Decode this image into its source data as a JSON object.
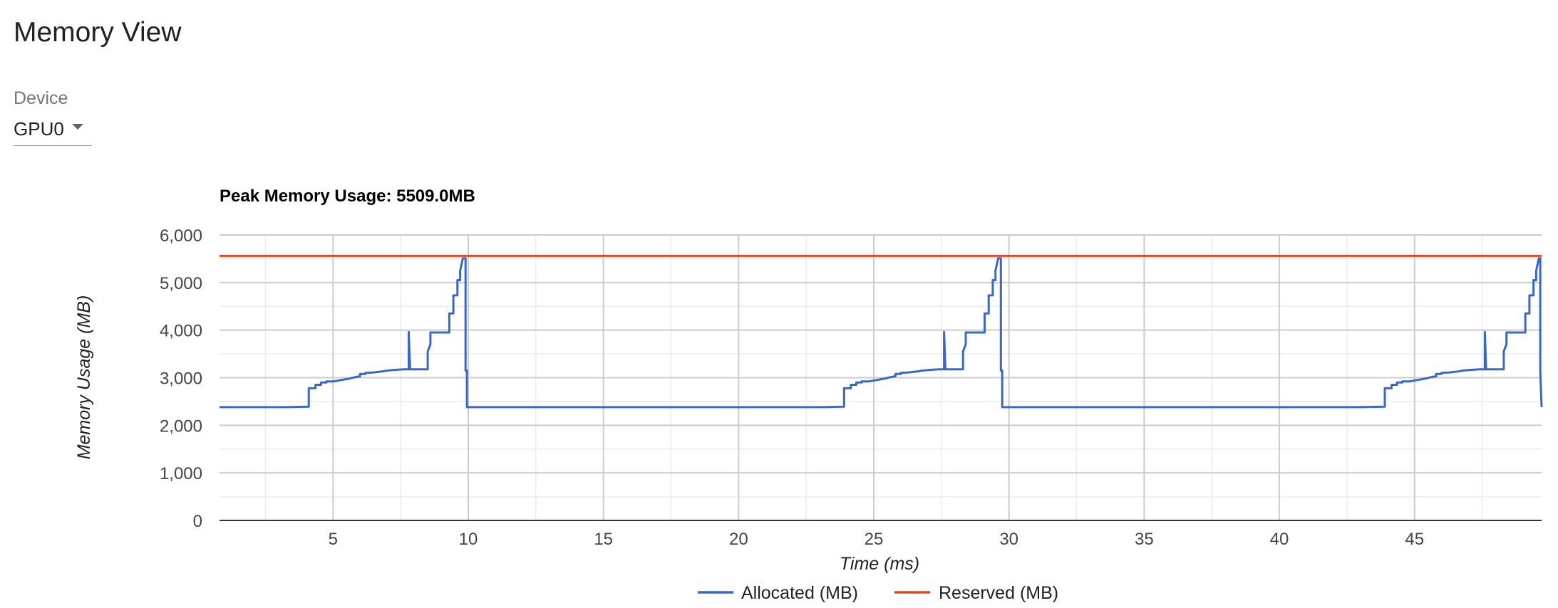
{
  "page": {
    "title": "Memory View"
  },
  "device": {
    "label": "Device",
    "selected": "GPU0"
  },
  "colors": {
    "allocated": "#3b67c4",
    "reserved": "#db4a2b"
  },
  "chart_data": {
    "type": "line",
    "title": "Peak Memory Usage: 5509.0MB",
    "xlabel": "Time (ms)",
    "ylabel": "Memory Usage (MB)",
    "xlim": [
      0.8,
      49.7
    ],
    "ylim": [
      0,
      6000
    ],
    "xticks": [
      5,
      10,
      15,
      20,
      25,
      30,
      35,
      40,
      45
    ],
    "xtick_labels": [
      "5",
      "10",
      "15",
      "20",
      "25",
      "30",
      "35",
      "40",
      "45"
    ],
    "yticks": [
      0,
      1000,
      2000,
      3000,
      4000,
      5000,
      6000
    ],
    "ytick_labels": [
      "0",
      "1,000",
      "2,000",
      "3,000",
      "4,000",
      "5,000",
      "6,000"
    ],
    "grid": true,
    "legend_position": "bottom",
    "series": [
      {
        "name": "Allocated (MB)",
        "color": "#3b67c4",
        "x": [
          0.8,
          3.3,
          4.1,
          4.1,
          4.35,
          4.35,
          4.55,
          4.55,
          4.75,
          4.75,
          5.0,
          5.2,
          5.4,
          5.6,
          5.8,
          6.0,
          6.0,
          6.2,
          6.2,
          6.5,
          6.8,
          7.0,
          7.3,
          7.6,
          7.8,
          7.8,
          7.85,
          7.85,
          8.5,
          8.5,
          8.6,
          8.6,
          9.3,
          9.3,
          9.45,
          9.45,
          9.6,
          9.6,
          9.7,
          9.7,
          9.8,
          9.9,
          9.9,
          9.95,
          9.95,
          10.0,
          10.0,
          23.1,
          23.9,
          23.9,
          24.15,
          24.15,
          24.35,
          24.35,
          24.55,
          24.55,
          24.8,
          25.0,
          25.2,
          25.4,
          25.6,
          25.8,
          25.8,
          26.0,
          26.0,
          26.3,
          26.6,
          26.8,
          27.1,
          27.4,
          27.6,
          27.6,
          27.65,
          27.65,
          28.3,
          28.3,
          28.4,
          28.4,
          29.1,
          29.1,
          29.25,
          29.25,
          29.4,
          29.4,
          29.5,
          29.5,
          29.6,
          29.7,
          29.7,
          29.75,
          29.75,
          29.8,
          29.8,
          43.0,
          43.9,
          43.9,
          44.15,
          44.15,
          44.35,
          44.35,
          44.55,
          44.55,
          44.8,
          45.0,
          45.2,
          45.4,
          45.6,
          45.8,
          45.8,
          46.0,
          46.0,
          46.3,
          46.6,
          46.8,
          47.1,
          47.4,
          47.6,
          47.6,
          47.65,
          47.65,
          48.3,
          48.3,
          48.4,
          48.4,
          49.1,
          49.1,
          49.25,
          49.25,
          49.4,
          49.4,
          49.5,
          49.5,
          49.6,
          49.65,
          49.65,
          49.7
        ],
        "y": [
          2380,
          2380,
          2390,
          2780,
          2780,
          2850,
          2850,
          2900,
          2900,
          2920,
          2920,
          2940,
          2960,
          2980,
          3010,
          3030,
          3080,
          3080,
          3100,
          3110,
          3130,
          3150,
          3165,
          3175,
          3175,
          3960,
          3175,
          3175,
          3175,
          3550,
          3700,
          3950,
          3950,
          4350,
          4350,
          4730,
          4730,
          5050,
          5050,
          5250,
          5509,
          5509,
          3150,
          3150,
          2380,
          2380,
          2380,
          2380,
          2390,
          2780,
          2780,
          2850,
          2850,
          2900,
          2900,
          2920,
          2920,
          2940,
          2960,
          2980,
          3010,
          3030,
          3080,
          3080,
          3100,
          3110,
          3130,
          3150,
          3165,
          3175,
          3175,
          3960,
          3175,
          3175,
          3175,
          3550,
          3700,
          3950,
          3950,
          4350,
          4350,
          4730,
          4730,
          5050,
          5050,
          5250,
          5509,
          5509,
          3150,
          3150,
          2380,
          2380,
          2380,
          2380,
          2390,
          2780,
          2780,
          2850,
          2850,
          2900,
          2900,
          2920,
          2920,
          2940,
          2960,
          2980,
          3010,
          3030,
          3080,
          3080,
          3100,
          3110,
          3130,
          3150,
          3165,
          3175,
          3175,
          3960,
          3175,
          3175,
          3175,
          3550,
          3700,
          3950,
          3950,
          4350,
          4350,
          4730,
          4730,
          5050,
          5050,
          5250,
          5509,
          5509,
          3150,
          2380
        ]
      },
      {
        "name": "Reserved (MB)",
        "color": "#db4a2b",
        "x": [
          0.8,
          49.7
        ],
        "y": [
          5560,
          5560
        ]
      }
    ]
  }
}
